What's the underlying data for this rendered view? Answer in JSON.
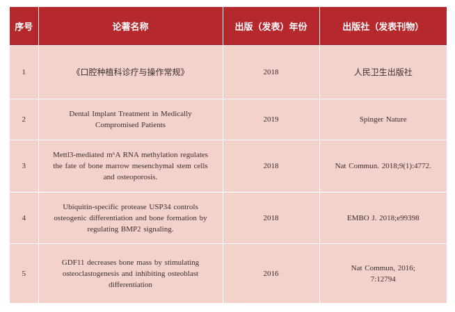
{
  "table": {
    "headers": [
      "序号",
      "论著名称",
      "出版（发表）年份",
      "出版社（发表刊物）"
    ],
    "rows": [
      {
        "no": "1",
        "title": [
          "《口腔种植科诊疗与操作常规》"
        ],
        "year": "2018",
        "publisher": [
          "人民卫生出版社"
        ]
      },
      {
        "no": "2",
        "title": [
          "Dental Implant Treatment in Medically",
          "Compromised Patients"
        ],
        "year": "2019",
        "publisher": [
          "Spinger Nature"
        ]
      },
      {
        "no": "3",
        "title": [
          "Mettl3-mediated m⁶A RNA methylation regulates",
          "the fate of bone marrow mesenchymal stem cells",
          "and osteoporosis."
        ],
        "year": "2018",
        "publisher": [
          "Nat Commun. 2018;9(1):4772."
        ]
      },
      {
        "no": "4",
        "title": [
          "Ubiquitin-specific protease USP34 controls",
          "osteogenic differentiation and bone formation by",
          "regulating BMP2 signaling."
        ],
        "year": "2018",
        "publisher": [
          "EMBO J. 2018;e99398"
        ]
      },
      {
        "no": "5",
        "title": [
          "GDF11 decreases bone mass by stimulating",
          "osteoclastogenesis and inhibiting osteoblast",
          "differentiation"
        ],
        "year": "2016",
        "publisher": [
          "Nat Commun, 2016;",
          "7:12794"
        ]
      }
    ]
  }
}
